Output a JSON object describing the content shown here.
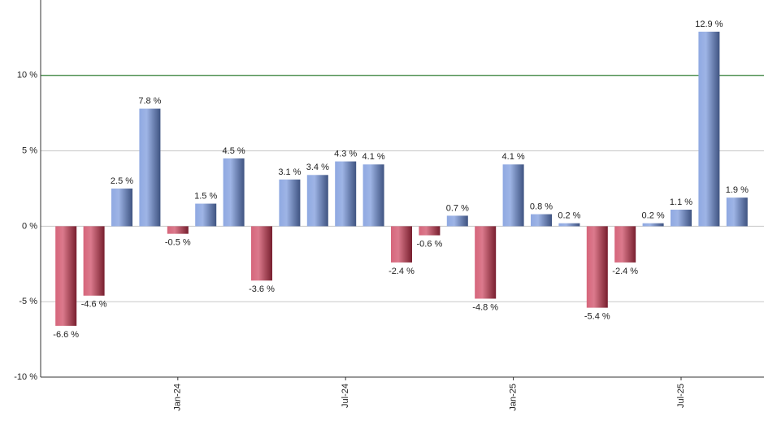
{
  "chart_data": {
    "type": "bar",
    "categories": [
      null,
      null,
      null,
      null,
      "Jan-24",
      null,
      null,
      null,
      null,
      null,
      "Jul-24",
      null,
      null,
      null,
      null,
      null,
      "Jan-25",
      null,
      null,
      null,
      null,
      null,
      "Jul-25",
      null,
      null
    ],
    "values": [
      -6.6,
      -4.6,
      2.5,
      7.8,
      -0.5,
      1.5,
      4.5,
      -3.6,
      3.1,
      3.4,
      4.3,
      4.1,
      -2.4,
      -0.6,
      0.7,
      -4.8,
      4.1,
      0.8,
      0.2,
      -5.4,
      -2.4,
      0.2,
      1.1,
      12.9,
      1.9
    ],
    "value_labels": [
      "-6.6 %",
      "-4.6 %",
      "2.5 %",
      "7.8 %",
      "-0.5 %",
      "1.5 %",
      "4.5 %",
      "-3.6 %",
      "3.1 %",
      "3.4 %",
      "4.3 %",
      "4.1 %",
      "-2.4 %",
      "-0.6 %",
      "0.7 %",
      "-4.8 %",
      "4.1 %",
      "0.8 %",
      "0.2 %",
      "-5.4 %",
      "-2.4 %",
      "0.2 %",
      "1.1 %",
      "12.9 %",
      "1.9 %"
    ],
    "colors": {
      "positive": "#6a8cd8",
      "negative": "#c8324f"
    },
    "ylim": [
      -10,
      15
    ],
    "yticks": [
      {
        "value": -10,
        "label": "-10 %"
      },
      {
        "value": -5,
        "label": "-5 %"
      },
      {
        "value": 0,
        "label": "0 %"
      },
      {
        "value": 5,
        "label": "5 %"
      },
      {
        "value": 10,
        "label": "10 %"
      }
    ],
    "reference_line": {
      "value": 10,
      "color": "#2e7d32"
    },
    "grid": true
  }
}
